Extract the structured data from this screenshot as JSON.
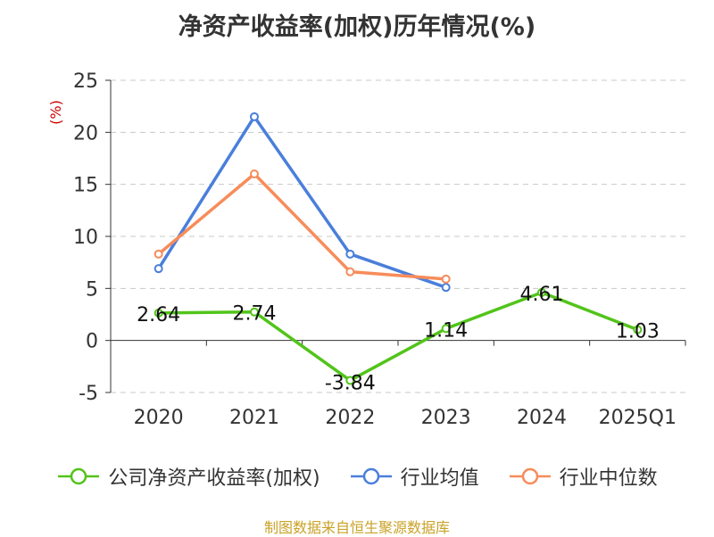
{
  "chart_data": {
    "type": "line",
    "title": "净资产收益率(加权)历年情况(%)",
    "ylabel": "(%)",
    "xlabel": "",
    "categories": [
      "2020",
      "2021",
      "2022",
      "2023",
      "2024",
      "2025Q1"
    ],
    "ylim": [
      -5,
      25
    ],
    "yticks": [
      "-5",
      "0",
      "5",
      "10",
      "15",
      "20",
      "25"
    ],
    "grid": true,
    "legend_position": "bottom",
    "series": [
      {
        "name": "公司净资产收益率(加权)",
        "color": "#52c41a",
        "values": [
          2.64,
          2.74,
          -3.84,
          1.14,
          4.61,
          1.03
        ],
        "labels": [
          "2.64",
          "2.74",
          "-3.84",
          "1.14",
          "4.61",
          "1.03"
        ]
      },
      {
        "name": "行业均值",
        "color": "#4a7fdb",
        "values": [
          6.9,
          21.5,
          8.3,
          5.1,
          null,
          null
        ]
      },
      {
        "name": "行业中位数",
        "color": "#f78c5a",
        "values": [
          8.3,
          16.0,
          6.6,
          5.9,
          null,
          null
        ]
      }
    ]
  },
  "source": "制图数据来自恒生聚源数据库"
}
